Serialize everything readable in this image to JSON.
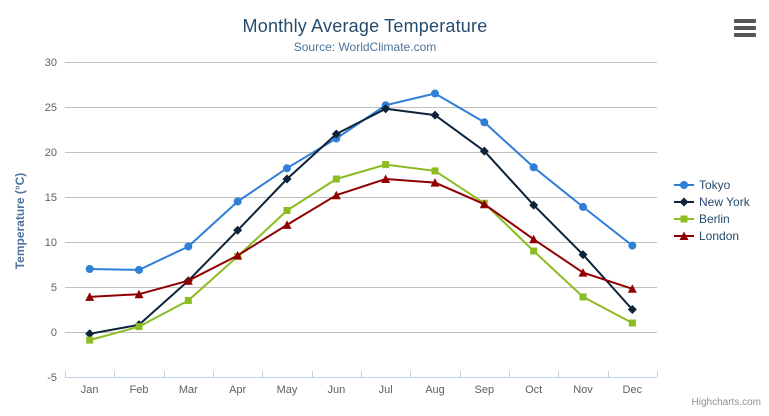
{
  "chart_data": {
    "type": "line",
    "title": "Monthly Average Temperature",
    "subtitle": "Source: WorldClimate.com",
    "xlabel": "",
    "ylabel": "Temperature (°C)",
    "categories": [
      "Jan",
      "Feb",
      "Mar",
      "Apr",
      "May",
      "Jun",
      "Jul",
      "Aug",
      "Sep",
      "Oct",
      "Nov",
      "Dec"
    ],
    "ylim": [
      -5,
      30
    ],
    "y_ticks": [
      -5,
      0,
      5,
      10,
      15,
      20,
      25,
      30
    ],
    "grid": true,
    "legend_position": "right",
    "series": [
      {
        "name": "Tokyo",
        "color": "#2f7ed8",
        "marker": "circle",
        "values": [
          7.0,
          6.9,
          9.5,
          14.5,
          18.2,
          21.5,
          25.2,
          26.5,
          23.3,
          18.3,
          13.9,
          9.6
        ]
      },
      {
        "name": "New York",
        "color": "#0d233a",
        "marker": "diamond",
        "values": [
          -0.2,
          0.8,
          5.7,
          11.3,
          17.0,
          22.0,
          24.8,
          24.1,
          20.1,
          14.1,
          8.6,
          2.5
        ]
      },
      {
        "name": "Berlin",
        "color": "#8bbc21",
        "marker": "square",
        "values": [
          -0.9,
          0.6,
          3.5,
          8.4,
          13.5,
          17.0,
          18.6,
          17.9,
          14.3,
          9.0,
          3.9,
          1.0
        ]
      },
      {
        "name": "London",
        "color": "#910000",
        "marker": "triangle",
        "values": [
          3.9,
          4.2,
          5.7,
          8.5,
          11.9,
          15.2,
          17.0,
          16.6,
          14.2,
          10.3,
          6.6,
          4.8
        ]
      }
    ]
  },
  "credits": {
    "label": "Highcharts.com"
  },
  "colors": {
    "title": "#274b6d",
    "subtitle": "#4d759e",
    "axis_title": "#4d759e",
    "tick_label": "#606060",
    "gridline": "#c0c0c0",
    "axis_line": "#c0d0e0",
    "legend_text": "#274b6d",
    "credits": "#909090",
    "export_icon": "#555555"
  }
}
